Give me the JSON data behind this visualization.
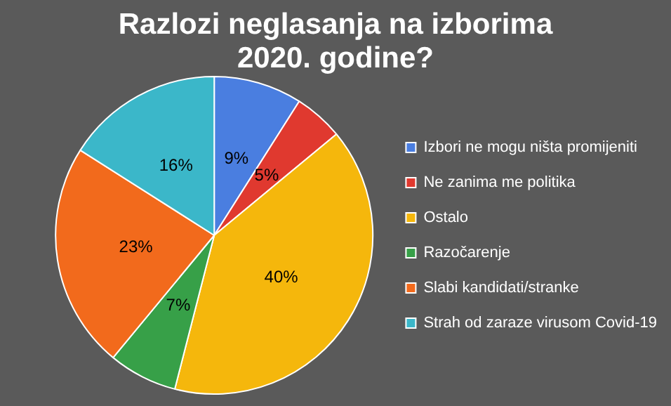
{
  "chart_data": {
    "type": "pie",
    "title": "Razlozi neglasanja na izborima 2020. godine?",
    "categories": [
      "Izbori ne mogu ništa promijeniti",
      "Ne zanima me politika",
      "Ostalo",
      "Razočarenje",
      "Slabi kandidati/stranke",
      "Strah od zaraze virusom Covid-19"
    ],
    "values": [
      9,
      5,
      40,
      7,
      23,
      16
    ],
    "value_labels": [
      "9%",
      "5%",
      "40%",
      "7%",
      "23%",
      "16%"
    ],
    "colors": [
      "#4a7ee0",
      "#e0392f",
      "#f5b70c",
      "#37a048",
      "#f26a1c",
      "#3bb7c9"
    ],
    "legend": "right"
  }
}
